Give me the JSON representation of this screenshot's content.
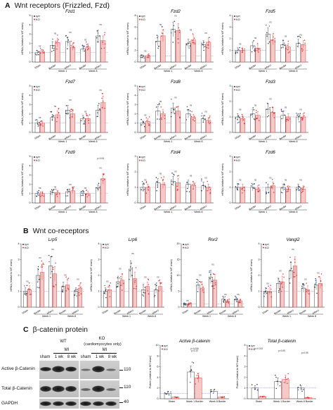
{
  "sections": [
    {
      "letter": "A",
      "title": "Wnt receptors (Frizzled, Fzd)"
    },
    {
      "letter": "B",
      "title": "Wnt co-receptors"
    },
    {
      "letter": "C",
      "title": "β-catenin protein"
    }
  ],
  "common": {
    "ylabel_mrna": "mRNA (relative to WT sham)",
    "ylabel_protein": "Protein (relative to WT sham)",
    "legend": [
      "WT",
      "KO"
    ],
    "ns": "ns",
    "colors": {
      "wt": "#2a2a2a",
      "ko": "#e03030",
      "ko_fill": "#f6c9c9",
      "wt_dot_blue": "#3a5bd0",
      "ref_line": "#4a4ae0"
    }
  },
  "chart_data": [
    {
      "id": "fzd1",
      "type": "bar",
      "title": "Fzd1",
      "ylim": [
        0,
        5
      ],
      "yticks": [
        0,
        1,
        2,
        3,
        4,
        5
      ],
      "group_labels": [
        "Sham",
        "Border",
        "Infarct",
        "Border",
        "Infarct"
      ],
      "week_labels": [
        "Week 1",
        "Week 8"
      ],
      "series": [
        {
          "name": "WT",
          "values": [
            1.0,
            1.8,
            2.2,
            1.4,
            2.8
          ]
        },
        {
          "name": "KO",
          "values": [
            1.1,
            2.1,
            1.6,
            1.6,
            2.3
          ]
        }
      ]
    },
    {
      "id": "fzd2",
      "type": "bar",
      "title": "Fzd2",
      "ylim": [
        0,
        8
      ],
      "yticks": [
        0,
        2,
        4,
        6,
        8
      ],
      "group_labels": [
        "Sham",
        "Border",
        "Infarct",
        "Border",
        "Infarct"
      ],
      "week_labels": [
        "Week 1",
        "Week 8"
      ],
      "series": [
        {
          "name": "WT",
          "values": [
            1.0,
            3.6,
            5.6,
            3.2,
            3.0
          ]
        },
        {
          "name": "KO",
          "values": [
            1.1,
            4.5,
            5.4,
            3.8,
            3.4
          ]
        }
      ]
    },
    {
      "id": "fzd5",
      "type": "bar",
      "title": "Fzd5",
      "ylim": [
        0,
        4
      ],
      "yticks": [
        0,
        1,
        2,
        3,
        4
      ],
      "group_labels": [
        "Sham",
        "Border",
        "Infarct",
        "Border",
        "Infarct"
      ],
      "week_labels": [
        "Week 1",
        "Week 8"
      ],
      "series": [
        {
          "name": "WT",
          "values": [
            1.0,
            1.4,
            2.4,
            1.5,
            1.6
          ]
        },
        {
          "name": "KO",
          "values": [
            1.0,
            1.2,
            1.9,
            1.3,
            1.5
          ]
        }
      ]
    },
    {
      "id": "fzd7",
      "type": "bar",
      "title": "Fzd7",
      "ylim": [
        0,
        5
      ],
      "yticks": [
        0,
        1,
        2,
        3,
        4,
        5
      ],
      "group_labels": [
        "Sham",
        "Border",
        "Infarct",
        "Border",
        "Infarct"
      ],
      "week_labels": [
        "Week 1",
        "Week 8"
      ],
      "series": [
        {
          "name": "WT",
          "values": [
            1.0,
            1.6,
            2.4,
            1.5,
            2.4
          ]
        },
        {
          "name": "KO",
          "values": [
            1.0,
            1.9,
            2.0,
            1.5,
            3.2
          ]
        }
      ]
    },
    {
      "id": "fzd8",
      "type": "bar",
      "title": "Fzd8",
      "ylim": [
        0,
        5
      ],
      "yticks": [
        0,
        1,
        2,
        3,
        4,
        5
      ],
      "group_labels": [
        "Sham",
        "Border",
        "Infarct",
        "Border",
        "Infarct"
      ],
      "week_labels": [
        "Week 1",
        "Week 8"
      ],
      "series": [
        {
          "name": "WT",
          "values": [
            1.0,
            2.3,
            2.6,
            2.0,
            1.5
          ]
        },
        {
          "name": "KO",
          "values": [
            1.2,
            2.0,
            2.3,
            1.6,
            1.3
          ]
        }
      ]
    },
    {
      "id": "fzd3",
      "type": "bar",
      "title": "Fzd3",
      "ylim": [
        0,
        3
      ],
      "yticks": [
        0,
        1,
        2,
        3
      ],
      "group_labels": [
        "Sham",
        "Border",
        "Infarct",
        "Border",
        "Infarct"
      ],
      "week_labels": [
        "Week 1",
        "Week 8"
      ],
      "series": [
        {
          "name": "WT",
          "values": [
            1.0,
            1.2,
            1.5,
            1.1,
            1.0
          ]
        },
        {
          "name": "KO",
          "values": [
            0.9,
            1.1,
            1.3,
            1.0,
            1.0
          ]
        }
      ]
    },
    {
      "id": "fzd9",
      "type": "bar",
      "title": "Fzd9",
      "ylim": [
        0,
        5
      ],
      "yticks": [
        0,
        1,
        2,
        3,
        4,
        5
      ],
      "group_labels": [
        "Sham",
        "Border",
        "Infarct",
        "Border",
        "Infarct"
      ],
      "week_labels": [
        "Week 1",
        "Week 8"
      ],
      "annotation": "p=0.06",
      "series": [
        {
          "name": "WT",
          "values": [
            1.0,
            1.1,
            1.2,
            1.0,
            1.6
          ]
        },
        {
          "name": "KO",
          "values": [
            1.0,
            1.1,
            1.3,
            1.0,
            2.6
          ]
        }
      ]
    },
    {
      "id": "fzd4",
      "type": "bar",
      "title": "Fzd4",
      "ylim": [
        0,
        3
      ],
      "yticks": [
        0,
        1,
        2,
        3
      ],
      "group_labels": [
        "Sham",
        "Border",
        "Infarct",
        "Border",
        "Infarct"
      ],
      "week_labels": [
        "Week 1",
        "Week 8"
      ],
      "series": [
        {
          "name": "WT",
          "values": [
            1.0,
            1.3,
            1.4,
            1.2,
            1.1
          ]
        },
        {
          "name": "KO",
          "values": [
            1.0,
            1.2,
            1.3,
            1.1,
            1.0
          ]
        }
      ]
    },
    {
      "id": "fzd6",
      "type": "bar",
      "title": "Fzd6",
      "ylim": [
        0,
        3
      ],
      "yticks": [
        0,
        1,
        2,
        3
      ],
      "group_labels": [
        "Sham",
        "Border",
        "Infarct",
        "Border",
        "Infarct"
      ],
      "week_labels": [
        "Week 1",
        "Week 8"
      ],
      "series": [
        {
          "name": "WT",
          "values": [
            1.0,
            1.0,
            1.0,
            1.0,
            1.0
          ]
        },
        {
          "name": "KO",
          "values": [
            1.0,
            0.9,
            1.1,
            0.9,
            0.9
          ]
        }
      ]
    },
    {
      "id": "lrp5",
      "type": "bar",
      "title": "Lrp5",
      "ylim": [
        0,
        4
      ],
      "yticks": [
        0,
        1,
        2,
        3,
        4
      ],
      "group_labels": [
        "Sham",
        "Border",
        "Infarct",
        "Border",
        "Infarct"
      ],
      "week_labels": [
        "Week 1",
        "Week 8"
      ],
      "series": [
        {
          "name": "WT",
          "values": [
            1.0,
            2.0,
            2.6,
            1.3,
            1.0
          ]
        },
        {
          "name": "KO",
          "values": [
            1.1,
            2.2,
            2.1,
            1.4,
            1.2
          ]
        }
      ]
    },
    {
      "id": "lrp6",
      "type": "bar",
      "title": "Lrp6",
      "ylim": [
        0,
        4
      ],
      "yticks": [
        0,
        1,
        2,
        3,
        4
      ],
      "group_labels": [
        "Sham",
        "Border",
        "Infarct",
        "Border",
        "Infarct"
      ],
      "week_labels": [
        "Week 1",
        "Week 8"
      ],
      "series": [
        {
          "name": "WT",
          "values": [
            1.0,
            1.6,
            2.4,
            1.1,
            1.1
          ]
        },
        {
          "name": "KO",
          "values": [
            1.1,
            1.7,
            1.8,
            1.3,
            1.3
          ]
        }
      ]
    },
    {
      "id": "ror2",
      "type": "bar",
      "title": "Ror2",
      "ylim": [
        0,
        20
      ],
      "yticks": [
        0,
        5,
        10,
        15,
        20
      ],
      "group_labels": [
        "Sham",
        "Border",
        "Infarct",
        "Border",
        "Infarct"
      ],
      "week_labels": [
        "Week 1",
        "Week 8"
      ],
      "series": [
        {
          "name": "WT",
          "values": [
            1.0,
            7.0,
            9.5,
            2.5,
            2.5
          ]
        },
        {
          "name": "KO",
          "values": [
            1.0,
            6.0,
            8.5,
            2.0,
            2.0
          ]
        }
      ]
    },
    {
      "id": "vangl2",
      "type": "bar",
      "title": "Vangl2",
      "ylim": [
        0,
        4
      ],
      "yticks": [
        0,
        1,
        2,
        3,
        4
      ],
      "group_labels": [
        "Sham",
        "Border",
        "Infarct",
        "Border",
        "Infarct"
      ],
      "week_labels": [
        "Week 1",
        "Week 8"
      ],
      "series": [
        {
          "name": "WT",
          "values": [
            1.0,
            1.5,
            2.3,
            1.2,
            1.4
          ]
        },
        {
          "name": "KO",
          "values": [
            1.0,
            1.6,
            2.6,
            1.1,
            1.5
          ]
        }
      ]
    },
    {
      "id": "active_bcat",
      "type": "bar",
      "title": "Active β-catenin",
      "ylim": [
        0,
        10
      ],
      "yticks": [
        0,
        2,
        4,
        6,
        8,
        10
      ],
      "group_labels": [
        "Sham",
        "Week 1  Border",
        "Week 8  Border"
      ],
      "annotations": [
        "p=0.006",
        "p=0.10"
      ],
      "series": [
        {
          "name": "WT",
          "values": [
            1.0,
            5.0,
            1.4
          ]
        },
        {
          "name": "KO",
          "values": [
            0.3,
            3.9,
            0.3
          ]
        }
      ]
    },
    {
      "id": "total_bcat",
      "type": "bar",
      "title": "Total β-catenin",
      "ylim": [
        0,
        5
      ],
      "yticks": [
        0,
        1,
        2,
        3,
        4,
        5
      ],
      "group_labels": [
        "Sham",
        "Week 1  Border",
        "Week 8  Border"
      ],
      "annotations": [
        "p=0.002",
        "p=0.09",
        "p=0.05"
      ],
      "series": [
        {
          "name": "WT",
          "values": [
            1.0,
            1.6,
            1.0
          ]
        },
        {
          "name": "KO",
          "values": [
            0.2,
            1.8,
            0.1
          ]
        }
      ]
    }
  ],
  "blot": {
    "hdr_wt": "WT",
    "hdr_ko": "KO",
    "hdr_ko_sub": "(cardiomyocytes only)",
    "hdr_mi": "MI",
    "lanes_wt": [
      "sham",
      "1 wk",
      "8 wk"
    ],
    "lanes_ko": [
      "sham",
      "1 wk",
      "8 wk"
    ],
    "rows": [
      "Active β-Catenin",
      "Total β-Catenin",
      "GAPDH"
    ],
    "markers": [
      "110",
      "110",
      "40"
    ]
  }
}
